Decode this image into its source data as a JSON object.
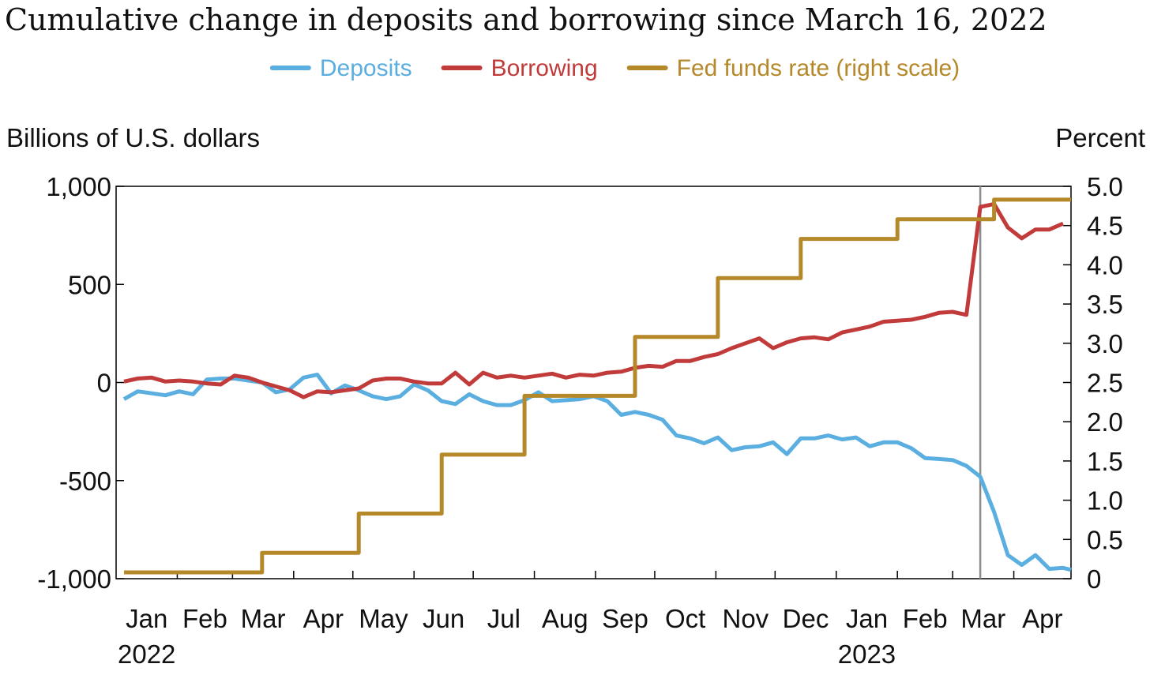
{
  "chart_data": {
    "type": "line",
    "title": "Cumulative change in deposits and borrowing since March 16, 2022",
    "legend": {
      "placement": "top",
      "entries": [
        {
          "label": "Deposits",
          "color": "#5aaee0"
        },
        {
          "label": "Borrowing",
          "color": "#c23b3b"
        },
        {
          "label": "Fed funds rate (right scale)",
          "color": "#b5892a"
        }
      ]
    },
    "ylabel_left": "Billions of U.S. dollars",
    "ylabel_right": "Percent",
    "ylim_left": [
      -1000,
      1000
    ],
    "ylim_right": [
      0,
      5.0
    ],
    "yticks_left": [
      {
        "value": 1000,
        "label": "1,000"
      },
      {
        "value": 500,
        "label": "500"
      },
      {
        "value": 0,
        "label": "0"
      },
      {
        "value": -500,
        "label": "-500"
      },
      {
        "value": -1000,
        "label": "-1,000"
      }
    ],
    "yticks_right": [
      {
        "value": 5.0,
        "label": "5.0"
      },
      {
        "value": 4.5,
        "label": "4.5"
      },
      {
        "value": 4.0,
        "label": "4.0"
      },
      {
        "value": 3.5,
        "label": "3.5"
      },
      {
        "value": 3.0,
        "label": "3.0"
      },
      {
        "value": 2.5,
        "label": "2.5"
      },
      {
        "value": 2.0,
        "label": "2.0"
      },
      {
        "value": 1.5,
        "label": "1.5"
      },
      {
        "value": 1.0,
        "label": "1.0"
      },
      {
        "value": 0.5,
        "label": "0.5"
      },
      {
        "value": 0,
        "label": "0"
      }
    ],
    "xlim": [
      "2022-01-01",
      "2023-04-30"
    ],
    "xticks": [
      {
        "date": "2022-01-01",
        "label": "Jan",
        "year": "2022"
      },
      {
        "date": "2022-02-01",
        "label": "Feb"
      },
      {
        "date": "2022-03-01",
        "label": "Mar"
      },
      {
        "date": "2022-04-01",
        "label": "Apr"
      },
      {
        "date": "2022-05-01",
        "label": "May"
      },
      {
        "date": "2022-06-01",
        "label": "Jun"
      },
      {
        "date": "2022-07-01",
        "label": "Jul"
      },
      {
        "date": "2022-08-01",
        "label": "Aug"
      },
      {
        "date": "2022-09-01",
        "label": "Sep"
      },
      {
        "date": "2022-10-01",
        "label": "Oct"
      },
      {
        "date": "2022-11-01",
        "label": "Nov"
      },
      {
        "date": "2022-12-01",
        "label": "Dec"
      },
      {
        "date": "2023-01-01",
        "label": "Jan",
        "year": "2023"
      },
      {
        "date": "2023-02-01",
        "label": "Feb"
      },
      {
        "date": "2023-03-01",
        "label": "Mar"
      },
      {
        "date": "2023-04-01",
        "label": "Apr"
      }
    ],
    "vline_date": "2023-03-15",
    "series": [
      {
        "name": "Deposits",
        "axis": "left",
        "color": "#5aaee0",
        "points": [
          [
            "2022-01-05",
            -85
          ],
          [
            "2022-01-12",
            -45
          ],
          [
            "2022-01-19",
            -55
          ],
          [
            "2022-01-26",
            -65
          ],
          [
            "2022-02-02",
            -45
          ],
          [
            "2022-02-09",
            -60
          ],
          [
            "2022-02-16",
            15
          ],
          [
            "2022-02-23",
            20
          ],
          [
            "2022-03-02",
            20
          ],
          [
            "2022-03-09",
            10
          ],
          [
            "2022-03-16",
            0
          ],
          [
            "2022-03-23",
            -50
          ],
          [
            "2022-03-30",
            -35
          ],
          [
            "2022-04-06",
            25
          ],
          [
            "2022-04-13",
            40
          ],
          [
            "2022-04-20",
            -55
          ],
          [
            "2022-04-27",
            -15
          ],
          [
            "2022-05-04",
            -40
          ],
          [
            "2022-05-11",
            -70
          ],
          [
            "2022-05-18",
            -85
          ],
          [
            "2022-05-25",
            -70
          ],
          [
            "2022-06-01",
            -10
          ],
          [
            "2022-06-08",
            -40
          ],
          [
            "2022-06-15",
            -95
          ],
          [
            "2022-06-22",
            -110
          ],
          [
            "2022-06-29",
            -60
          ],
          [
            "2022-07-06",
            -95
          ],
          [
            "2022-07-13",
            -115
          ],
          [
            "2022-07-20",
            -115
          ],
          [
            "2022-07-27",
            -90
          ],
          [
            "2022-08-03",
            -50
          ],
          [
            "2022-08-10",
            -95
          ],
          [
            "2022-08-17",
            -90
          ],
          [
            "2022-08-24",
            -85
          ],
          [
            "2022-08-31",
            -70
          ],
          [
            "2022-09-07",
            -95
          ],
          [
            "2022-09-14",
            -165
          ],
          [
            "2022-09-21",
            -150
          ],
          [
            "2022-09-28",
            -165
          ],
          [
            "2022-10-05",
            -190
          ],
          [
            "2022-10-12",
            -270
          ],
          [
            "2022-10-19",
            -285
          ],
          [
            "2022-10-26",
            -310
          ],
          [
            "2022-11-02",
            -280
          ],
          [
            "2022-11-09",
            -345
          ],
          [
            "2022-11-16",
            -330
          ],
          [
            "2022-11-23",
            -325
          ],
          [
            "2022-11-30",
            -305
          ],
          [
            "2022-12-07",
            -365
          ],
          [
            "2022-12-14",
            -285
          ],
          [
            "2022-12-21",
            -285
          ],
          [
            "2022-12-28",
            -270
          ],
          [
            "2023-01-04",
            -290
          ],
          [
            "2023-01-11",
            -280
          ],
          [
            "2023-01-18",
            -325
          ],
          [
            "2023-01-25",
            -305
          ],
          [
            "2023-02-01",
            -305
          ],
          [
            "2023-02-08",
            -335
          ],
          [
            "2023-02-15",
            -385
          ],
          [
            "2023-02-22",
            -390
          ],
          [
            "2023-03-01",
            -395
          ],
          [
            "2023-03-08",
            -425
          ],
          [
            "2023-03-15",
            -480
          ],
          [
            "2023-03-22",
            -660
          ],
          [
            "2023-03-29",
            -880
          ],
          [
            "2023-04-05",
            -930
          ],
          [
            "2023-04-12",
            -880
          ],
          [
            "2023-04-19",
            -950
          ],
          [
            "2023-04-26",
            -945
          ],
          [
            "2023-04-30",
            -955
          ]
        ]
      },
      {
        "name": "Borrowing",
        "axis": "left",
        "color": "#c23b3b",
        "points": [
          [
            "2022-01-05",
            5
          ],
          [
            "2022-01-12",
            20
          ],
          [
            "2022-01-19",
            25
          ],
          [
            "2022-01-26",
            5
          ],
          [
            "2022-02-02",
            10
          ],
          [
            "2022-02-09",
            5
          ],
          [
            "2022-02-16",
            -5
          ],
          [
            "2022-02-23",
            -10
          ],
          [
            "2022-03-02",
            35
          ],
          [
            "2022-03-09",
            25
          ],
          [
            "2022-03-16",
            0
          ],
          [
            "2022-03-23",
            -20
          ],
          [
            "2022-03-30",
            -40
          ],
          [
            "2022-04-06",
            -75
          ],
          [
            "2022-04-13",
            -45
          ],
          [
            "2022-04-20",
            -50
          ],
          [
            "2022-04-27",
            -40
          ],
          [
            "2022-05-04",
            -30
          ],
          [
            "2022-05-11",
            10
          ],
          [
            "2022-05-18",
            20
          ],
          [
            "2022-05-25",
            20
          ],
          [
            "2022-06-01",
            5
          ],
          [
            "2022-06-08",
            -5
          ],
          [
            "2022-06-15",
            -5
          ],
          [
            "2022-06-22",
            50
          ],
          [
            "2022-06-29",
            -10
          ],
          [
            "2022-07-06",
            50
          ],
          [
            "2022-07-13",
            25
          ],
          [
            "2022-07-20",
            35
          ],
          [
            "2022-07-27",
            25
          ],
          [
            "2022-08-03",
            35
          ],
          [
            "2022-08-10",
            45
          ],
          [
            "2022-08-17",
            25
          ],
          [
            "2022-08-24",
            40
          ],
          [
            "2022-08-31",
            35
          ],
          [
            "2022-09-07",
            50
          ],
          [
            "2022-09-14",
            55
          ],
          [
            "2022-09-21",
            75
          ],
          [
            "2022-09-28",
            85
          ],
          [
            "2022-10-05",
            80
          ],
          [
            "2022-10-12",
            110
          ],
          [
            "2022-10-19",
            110
          ],
          [
            "2022-10-26",
            130
          ],
          [
            "2022-11-02",
            145
          ],
          [
            "2022-11-09",
            175
          ],
          [
            "2022-11-16",
            200
          ],
          [
            "2022-11-23",
            225
          ],
          [
            "2022-11-30",
            175
          ],
          [
            "2022-12-07",
            205
          ],
          [
            "2022-12-14",
            225
          ],
          [
            "2022-12-21",
            230
          ],
          [
            "2022-12-28",
            220
          ],
          [
            "2023-01-04",
            255
          ],
          [
            "2023-01-11",
            270
          ],
          [
            "2023-01-18",
            285
          ],
          [
            "2023-01-25",
            310
          ],
          [
            "2023-02-01",
            315
          ],
          [
            "2023-02-08",
            320
          ],
          [
            "2023-02-15",
            335
          ],
          [
            "2023-02-22",
            355
          ],
          [
            "2023-03-01",
            360
          ],
          [
            "2023-03-08",
            345
          ],
          [
            "2023-03-15",
            895
          ],
          [
            "2023-03-22",
            910
          ],
          [
            "2023-03-29",
            790
          ],
          [
            "2023-04-05",
            735
          ],
          [
            "2023-04-12",
            780
          ],
          [
            "2023-04-19",
            780
          ],
          [
            "2023-04-26",
            810
          ]
        ]
      },
      {
        "name": "Fed funds rate (right scale)",
        "axis": "right",
        "color": "#b5892a",
        "step": true,
        "points": [
          [
            "2022-01-05",
            0.08
          ],
          [
            "2022-03-16",
            0.33
          ],
          [
            "2022-05-04",
            0.83
          ],
          [
            "2022-06-15",
            1.58
          ],
          [
            "2022-07-27",
            2.33
          ],
          [
            "2022-09-21",
            3.08
          ],
          [
            "2022-11-02",
            3.83
          ],
          [
            "2022-12-14",
            4.33
          ],
          [
            "2023-02-01",
            4.58
          ],
          [
            "2023-03-22",
            4.83
          ],
          [
            "2023-04-30",
            4.83
          ]
        ]
      }
    ]
  }
}
